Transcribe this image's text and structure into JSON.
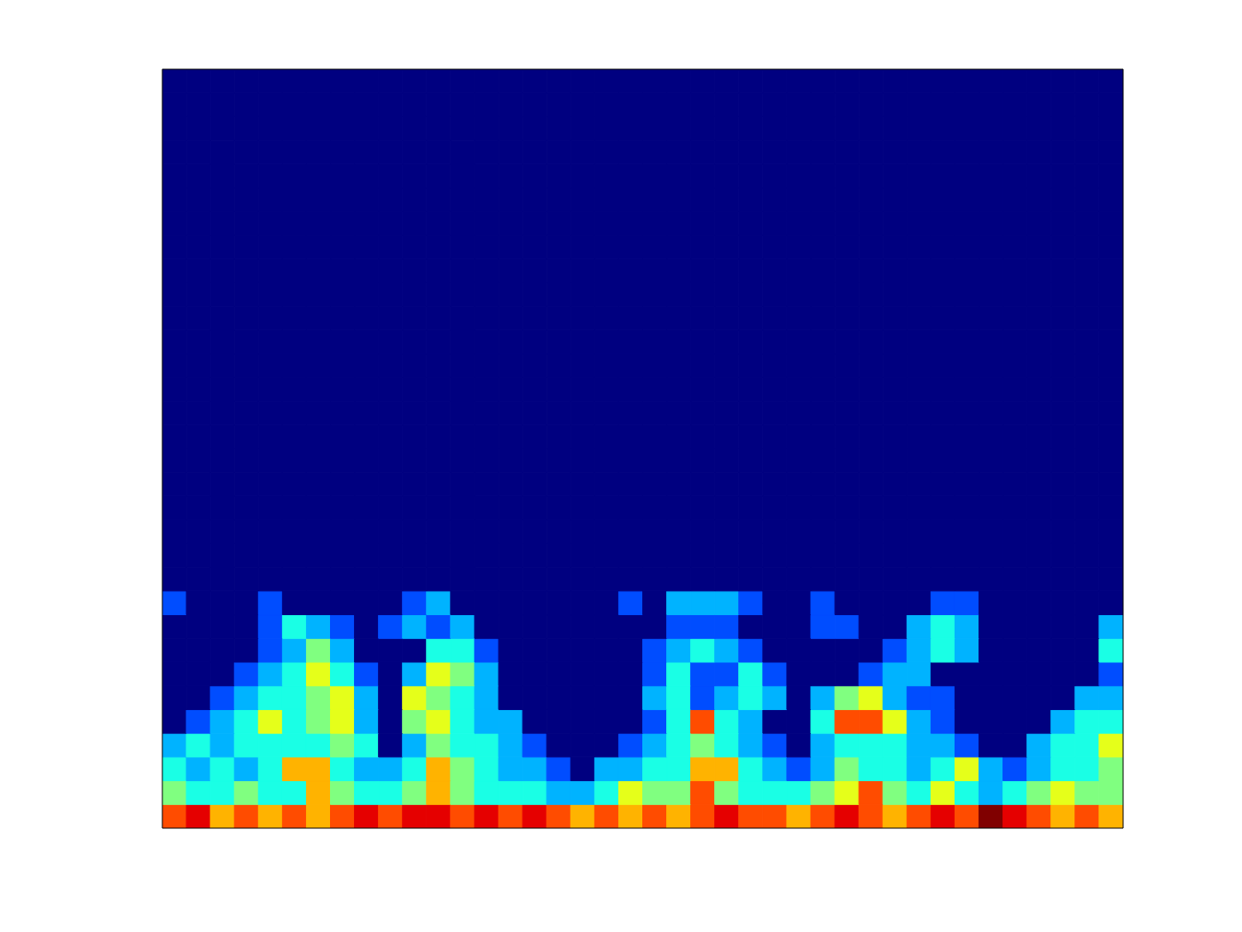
{
  "chart_data": {
    "type": "heatmap",
    "xlim": [
      0,
      40
    ],
    "ylim": [
      0,
      32
    ],
    "tick_labels": false,
    "clim": [
      0,
      10
    ],
    "cells": [
      [
        8,
        9,
        7,
        8,
        7,
        8,
        7,
        8,
        9,
        8,
        9,
        9,
        8,
        9,
        8,
        9,
        8,
        7,
        8,
        7,
        8,
        7,
        8,
        9,
        8,
        8,
        7,
        8,
        9,
        8,
        7,
        8,
        9,
        8,
        10,
        9,
        8,
        7,
        8,
        7
      ],
      [
        5,
        4,
        4,
        5,
        4,
        4,
        7,
        5,
        4,
        4,
        5,
        7,
        5,
        4,
        4,
        4,
        3,
        3,
        4,
        6,
        5,
        5,
        8,
        5,
        4,
        4,
        4,
        5,
        6,
        8,
        5,
        4,
        6,
        4,
        3,
        4,
        5,
        6,
        5,
        5
      ],
      [
        4,
        3,
        4,
        3,
        4,
        7,
        7,
        4,
        3,
        3,
        4,
        7,
        5,
        4,
        3,
        3,
        2,
        0,
        3,
        3,
        4,
        4,
        7,
        7,
        4,
        3,
        2,
        3,
        5,
        4,
        4,
        3,
        4,
        6,
        3,
        2,
        3,
        4,
        4,
        5
      ],
      [
        3,
        4,
        3,
        4,
        4,
        4,
        4,
        5,
        4,
        0,
        3,
        5,
        4,
        4,
        3,
        2,
        0,
        0,
        0,
        2,
        3,
        4,
        5,
        4,
        3,
        2,
        0,
        3,
        4,
        4,
        4,
        3,
        3,
        2,
        0,
        0,
        3,
        4,
        4,
        6
      ],
      [
        0,
        2,
        3,
        4,
        6,
        4,
        5,
        6,
        3,
        0,
        5,
        6,
        4,
        3,
        3,
        0,
        0,
        0,
        0,
        0,
        2,
        4,
        8,
        4,
        3,
        0,
        0,
        4,
        8,
        8,
        6,
        3,
        2,
        0,
        0,
        0,
        0,
        3,
        4,
        4
      ],
      [
        0,
        0,
        2,
        3,
        4,
        4,
        5,
        6,
        3,
        0,
        6,
        5,
        4,
        3,
        0,
        0,
        0,
        0,
        0,
        0,
        3,
        4,
        2,
        3,
        4,
        3,
        0,
        3,
        5,
        6,
        3,
        2,
        2,
        0,
        0,
        0,
        0,
        0,
        3,
        3
      ],
      [
        0,
        0,
        0,
        2,
        3,
        4,
        6,
        4,
        2,
        0,
        3,
        6,
        5,
        3,
        0,
        0,
        0,
        0,
        0,
        0,
        2,
        4,
        2,
        2,
        4,
        2,
        0,
        0,
        0,
        2,
        3,
        3,
        0,
        0,
        0,
        0,
        0,
        0,
        0,
        2
      ],
      [
        0,
        0,
        0,
        0,
        2,
        3,
        5,
        3,
        0,
        0,
        0,
        4,
        4,
        2,
        0,
        0,
        0,
        0,
        0,
        0,
        2,
        3,
        4,
        3,
        2,
        0,
        0,
        0,
        0,
        0,
        2,
        3,
        4,
        3,
        0,
        0,
        0,
        0,
        0,
        4
      ],
      [
        0,
        0,
        0,
        0,
        2,
        4,
        3,
        2,
        0,
        2,
        3,
        2,
        3,
        0,
        0,
        0,
        0,
        0,
        0,
        0,
        0,
        2,
        2,
        2,
        0,
        0,
        0,
        2,
        2,
        0,
        0,
        3,
        4,
        3,
        0,
        0,
        0,
        0,
        0,
        3
      ],
      [
        2,
        0,
        0,
        0,
        2,
        0,
        0,
        0,
        0,
        0,
        2,
        3,
        0,
        0,
        0,
        0,
        0,
        0,
        0,
        2,
        0,
        3,
        3,
        3,
        2,
        0,
        0,
        2,
        0,
        0,
        0,
        0,
        2,
        2,
        0,
        0,
        0,
        0,
        0,
        0
      ],
      [
        0,
        0,
        0,
        0,
        0,
        0,
        0,
        0,
        0,
        0,
        0,
        0,
        0,
        0,
        0,
        0,
        0,
        0,
        0,
        0,
        0,
        0,
        0,
        0,
        0,
        0,
        0,
        0,
        0,
        0,
        0,
        0,
        0,
        0,
        0,
        0,
        0,
        0,
        0,
        0
      ],
      [
        0,
        0,
        0,
        0,
        0,
        0,
        0,
        0,
        0,
        0,
        0,
        0,
        0,
        0,
        0,
        0,
        0,
        0,
        0,
        0,
        0,
        0,
        0,
        0,
        0,
        0,
        0,
        0,
        0,
        0,
        0,
        0,
        0,
        0,
        0,
        0,
        0,
        0,
        0,
        0
      ],
      [
        0,
        0,
        0,
        0,
        0,
        0,
        0,
        0,
        0,
        0,
        0,
        0,
        0,
        0,
        0,
        0,
        0,
        0,
        0,
        0,
        0,
        0,
        0,
        0,
        0,
        0,
        0,
        0,
        0,
        0,
        0,
        0,
        0,
        0,
        0,
        0,
        0,
        0,
        0,
        0
      ],
      [
        0,
        0,
        0,
        0,
        0,
        0,
        0,
        0,
        0,
        0,
        0,
        0,
        0,
        0,
        0,
        0,
        0,
        0,
        0,
        0,
        0,
        0,
        0,
        0,
        0,
        0,
        0,
        0,
        0,
        0,
        0,
        0,
        0,
        0,
        0,
        0,
        0,
        0,
        0,
        0
      ],
      [
        0,
        0,
        0,
        0,
        0,
        0,
        0,
        0,
        0,
        0,
        0,
        0,
        0,
        0,
        0,
        0,
        0,
        0,
        0,
        0,
        0,
        0,
        0,
        0,
        0,
        0,
        0,
        0,
        0,
        0,
        0,
        0,
        0,
        0,
        0,
        0,
        0,
        0,
        0,
        0
      ],
      [
        0,
        0,
        0,
        0,
        0,
        0,
        0,
        0,
        0,
        0,
        0,
        0,
        0,
        0,
        0,
        0,
        0,
        0,
        0,
        0,
        0,
        0,
        0,
        0,
        0,
        0,
        0,
        0,
        0,
        0,
        0,
        0,
        0,
        0,
        0,
        0,
        0,
        0,
        0,
        0
      ],
      [
        0,
        0,
        0,
        0,
        0,
        0,
        0,
        0,
        0,
        0,
        0,
        0,
        0,
        0,
        0,
        0,
        0,
        0,
        0,
        0,
        0,
        0,
        0,
        0,
        0,
        0,
        0,
        0,
        0,
        0,
        0,
        0,
        0,
        0,
        0,
        0,
        0,
        0,
        0,
        0
      ],
      [
        0,
        0,
        0,
        0,
        0,
        0,
        0,
        0,
        0,
        0,
        0,
        0,
        0,
        0,
        0,
        0,
        0,
        0,
        0,
        0,
        0,
        0,
        0,
        0,
        0,
        0,
        0,
        0,
        0,
        0,
        0,
        0,
        0,
        0,
        0,
        0,
        0,
        0,
        0,
        0
      ],
      [
        0,
        0,
        0,
        0,
        0,
        0,
        0,
        0,
        0,
        0,
        0,
        0,
        0,
        0,
        0,
        0,
        0,
        0,
        0,
        0,
        0,
        0,
        0,
        0,
        0,
        0,
        0,
        0,
        0,
        0,
        0,
        0,
        0,
        0,
        0,
        0,
        0,
        0,
        0,
        0
      ],
      [
        0,
        0,
        0,
        0,
        0,
        0,
        0,
        0,
        0,
        0,
        0,
        0,
        0,
        0,
        0,
        0,
        0,
        0,
        0,
        0,
        0,
        0,
        0,
        0,
        0,
        0,
        0,
        0,
        0,
        0,
        0,
        0,
        0,
        0,
        0,
        0,
        0,
        0,
        0,
        0
      ],
      [
        0,
        0,
        0,
        0,
        0,
        0,
        0,
        0,
        0,
        0,
        0,
        0,
        0,
        0,
        0,
        0,
        0,
        0,
        0,
        0,
        0,
        0,
        0,
        0,
        0,
        0,
        0,
        0,
        0,
        0,
        0,
        0,
        0,
        0,
        0,
        0,
        0,
        0,
        0,
        0
      ],
      [
        0,
        0,
        0,
        0,
        0,
        0,
        0,
        0,
        0,
        0,
        0,
        0,
        0,
        0,
        0,
        0,
        0,
        0,
        0,
        0,
        0,
        0,
        0,
        0,
        0,
        0,
        0,
        0,
        0,
        0,
        0,
        0,
        0,
        0,
        0,
        0,
        0,
        0,
        0,
        0
      ],
      [
        0,
        0,
        0,
        0,
        0,
        0,
        0,
        0,
        0,
        0,
        0,
        0,
        0,
        0,
        0,
        0,
        0,
        0,
        0,
        0,
        0,
        0,
        0,
        0,
        0,
        0,
        0,
        0,
        0,
        0,
        0,
        0,
        0,
        0,
        0,
        0,
        0,
        0,
        0,
        0
      ],
      [
        0,
        0,
        0,
        0,
        0,
        0,
        0,
        0,
        0,
        0,
        0,
        0,
        0,
        0,
        0,
        0,
        0,
        0,
        0,
        0,
        0,
        0,
        0,
        0,
        0,
        0,
        0,
        0,
        0,
        0,
        0,
        0,
        0,
        0,
        0,
        0,
        0,
        0,
        0,
        0
      ],
      [
        0,
        0,
        0,
        0,
        0,
        0,
        0,
        0,
        0,
        0,
        0,
        0,
        0,
        0,
        0,
        0,
        0,
        0,
        0,
        0,
        0,
        0,
        0,
        0,
        0,
        0,
        0,
        0,
        0,
        0,
        0,
        0,
        0,
        0,
        0,
        0,
        0,
        0,
        0,
        0
      ],
      [
        0,
        0,
        0,
        0,
        0,
        0,
        0,
        0,
        0,
        0,
        0,
        0,
        0,
        0,
        0,
        0,
        0,
        0,
        0,
        0,
        0,
        0,
        0,
        0,
        0,
        0,
        0,
        0,
        0,
        0,
        0,
        0,
        0,
        0,
        0,
        0,
        0,
        0,
        0,
        0
      ],
      [
        0,
        0,
        0,
        0,
        0,
        0,
        0,
        0,
        0,
        0,
        0,
        0,
        0,
        0,
        0,
        0,
        0,
        0,
        0,
        0,
        0,
        0,
        0,
        0,
        0,
        0,
        0,
        0,
        0,
        0,
        0,
        0,
        0,
        0,
        0,
        0,
        0,
        0,
        0,
        0
      ],
      [
        0,
        0,
        0,
        0,
        0,
        0,
        0,
        0,
        0,
        0,
        0,
        0,
        0,
        0,
        0,
        0,
        0,
        0,
        0,
        0,
        0,
        0,
        0,
        0,
        0,
        0,
        0,
        0,
        0,
        0,
        0,
        0,
        0,
        0,
        0,
        0,
        0,
        0,
        0,
        0
      ],
      [
        0,
        0,
        0,
        0,
        0,
        0,
        0,
        0,
        0,
        0,
        0,
        0,
        0,
        0,
        0,
        0,
        0,
        0,
        0,
        0,
        0,
        0,
        0,
        0,
        0,
        0,
        0,
        0,
        0,
        0,
        0,
        0,
        0,
        0,
        0,
        0,
        0,
        0,
        0,
        0
      ],
      [
        0,
        0,
        0,
        0,
        0,
        0,
        0,
        0,
        0,
        0,
        0,
        0,
        0,
        0,
        0,
        0,
        0,
        0,
        0,
        0,
        0,
        0,
        0,
        0,
        0,
        0,
        0,
        0,
        0,
        0,
        0,
        0,
        0,
        0,
        0,
        0,
        0,
        0,
        0,
        0
      ],
      [
        0,
        0,
        0,
        0,
        0,
        0,
        0,
        0,
        0,
        0,
        0,
        0,
        0,
        0,
        0,
        0,
        0,
        0,
        0,
        0,
        0,
        0,
        0,
        0,
        0,
        0,
        0,
        0,
        0,
        0,
        0,
        0,
        0,
        0,
        0,
        0,
        0,
        0,
        0,
        0
      ],
      [
        0,
        0,
        0,
        0,
        0,
        0,
        0,
        0,
        0,
        0,
        0,
        0,
        0,
        0,
        0,
        0,
        0,
        0,
        0,
        0,
        0,
        0,
        0,
        0,
        0,
        0,
        0,
        0,
        0,
        0,
        0,
        0,
        0,
        0,
        0,
        0,
        0,
        0,
        0,
        0
      ]
    ]
  }
}
